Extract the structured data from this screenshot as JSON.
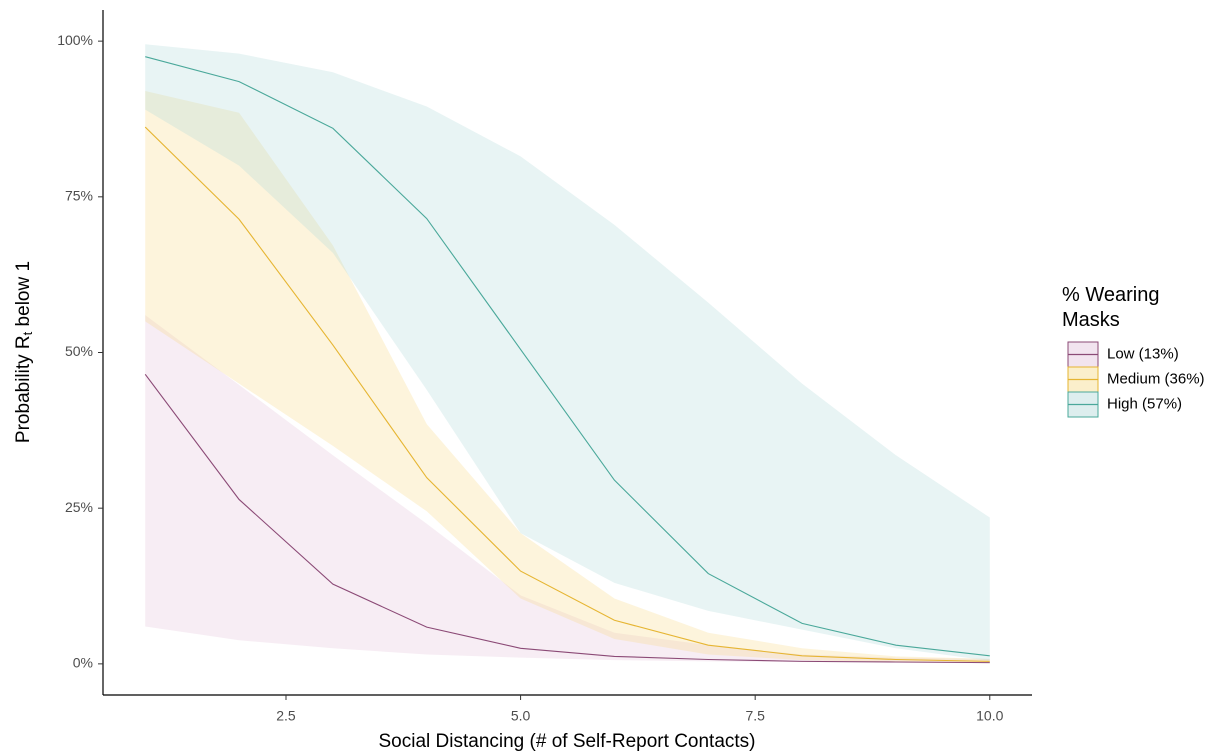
{
  "chart_data": {
    "type": "line",
    "x_label": "Social Distancing (# of Self-Report Contacts)",
    "y_label": {
      "main": "Probability R",
      "subscript": "t",
      "rest": " below 1"
    },
    "legend_title": "% Wearing Masks",
    "legend_position": "right",
    "x": [
      1,
      2,
      3,
      4,
      5,
      6,
      7,
      8,
      9,
      10
    ],
    "xlim": [
      0.55,
      10.45
    ],
    "xticks": [
      {
        "value": 2.5,
        "label": "2.5"
      },
      {
        "value": 5,
        "label": "5.0"
      },
      {
        "value": 7.5,
        "label": "7.5"
      },
      {
        "value": 10,
        "label": "10.0"
      }
    ],
    "ylim": [
      -5,
      105
    ],
    "yticks": [
      {
        "value": 0,
        "label": "0%"
      },
      {
        "value": 25,
        "label": "25%"
      },
      {
        "value": 50,
        "label": "50%"
      },
      {
        "value": 75,
        "label": "75%"
      },
      {
        "value": 100,
        "label": "100%"
      }
    ],
    "series": [
      {
        "name": "Low (13%)",
        "color": "#8b4a76",
        "fill": "#e3c3dc",
        "values": [
          46.5,
          26.4,
          12.8,
          5.9,
          2.5,
          1.2,
          0.7,
          0.4,
          0.3,
          0.2
        ],
        "lower": [
          6,
          3.8,
          2.5,
          1.5,
          1,
          0.6,
          0.4,
          0.3,
          0.2,
          0.1
        ],
        "upper": [
          56,
          44.8,
          33.5,
          22.5,
          11,
          5,
          3,
          1.5,
          1,
          0.8
        ]
      },
      {
        "name": "Medium (36%)",
        "color": "#e6b532",
        "fill": "#f7dc8c",
        "values": [
          86.2,
          71.4,
          51.2,
          29.9,
          14.9,
          7,
          3,
          1.3,
          0.7,
          0.4
        ],
        "lower": [
          55,
          45,
          35,
          24.5,
          10.5,
          4,
          1.5,
          0.6,
          0.3,
          0.1
        ],
        "upper": [
          92,
          88.5,
          67.2,
          38.5,
          21,
          10.5,
          5,
          2.5,
          1.2,
          0.8
        ]
      },
      {
        "name": "High (57%)",
        "color": "#4aa89a",
        "fill": "#b3d9d9",
        "values": [
          97.5,
          93.5,
          86,
          71.5,
          50.5,
          29.5,
          14.5,
          6.5,
          3,
          1.3
        ],
        "lower": [
          89,
          80,
          66,
          44,
          21,
          13,
          8.5,
          5.5,
          2.5,
          0.5
        ],
        "upper": [
          99.5,
          98,
          95,
          89.5,
          81.5,
          70.5,
          58,
          45,
          33.5,
          23.5
        ]
      }
    ]
  }
}
